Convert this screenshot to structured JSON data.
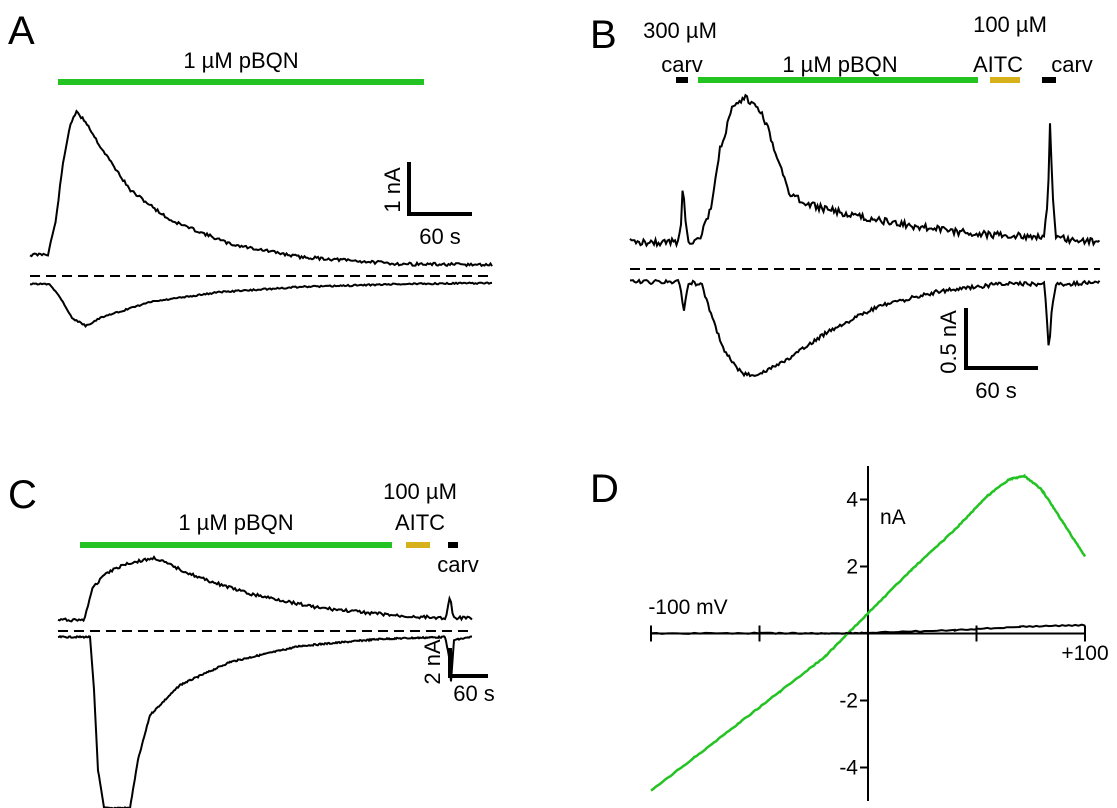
{
  "panels": {
    "A": {
      "letter": "A",
      "bars": [
        {
          "label": "1 µM pBQN",
          "color": "#22c322"
        }
      ],
      "scale": {
        "y_label": "1 nA",
        "x_label": "60 s"
      }
    },
    "B": {
      "letter": "B",
      "bars": [
        {
          "label_top": "300 µM",
          "label": "carv",
          "color": "#000000"
        },
        {
          "label": "1 µM pBQN",
          "color": "#22c322"
        },
        {
          "label_top": "100 µM",
          "label": "AITC",
          "color": "#d6b11a"
        },
        {
          "label": "carv",
          "color": "#000000"
        }
      ],
      "scale": {
        "y_label": "0.5 nA",
        "x_label": "60 s"
      }
    },
    "C": {
      "letter": "C",
      "bars": [
        {
          "label": "1 µM pBQN",
          "color": "#22c322"
        },
        {
          "label_top": "100 µM",
          "label": "AITC",
          "color": "#d6b11a"
        },
        {
          "label": "carv",
          "color": "#000000"
        }
      ],
      "scale": {
        "y_label": "2 nA",
        "x_label": "60 s"
      }
    }
  },
  "chart_data": {
    "type": "line",
    "panel": "D",
    "letter": "D",
    "xlim": [
      -100,
      100
    ],
    "ylim": [
      -5,
      5
    ],
    "x_ticks": [
      -100,
      -50,
      0,
      50,
      100
    ],
    "y_ticks": [
      {
        "value": 4,
        "label": "4"
      },
      {
        "value": 2,
        "label": "2"
      },
      {
        "value": -2,
        "label": "-2"
      },
      {
        "value": -4,
        "label": "-4"
      }
    ],
    "x_label_left": "-100 mV",
    "x_label_right": "+100",
    "y_unit": "nA",
    "series": [
      {
        "color": "#22c322",
        "x": [
          -100,
          -80,
          -60,
          -40,
          -20,
          0,
          20,
          40,
          55,
          65,
          72,
          80,
          90,
          100
        ],
        "y": [
          -4.7,
          -3.7,
          -2.7,
          -1.7,
          -0.7,
          0.6,
          1.9,
          3.1,
          4.1,
          4.6,
          4.7,
          4.3,
          3.3,
          2.3
        ]
      },
      {
        "color": "#000000",
        "x": [
          -100,
          -50,
          -20,
          0,
          40,
          70,
          100
        ],
        "y": [
          0.0,
          0.01,
          0.0,
          0.02,
          0.1,
          0.2,
          0.25
        ]
      }
    ]
  }
}
